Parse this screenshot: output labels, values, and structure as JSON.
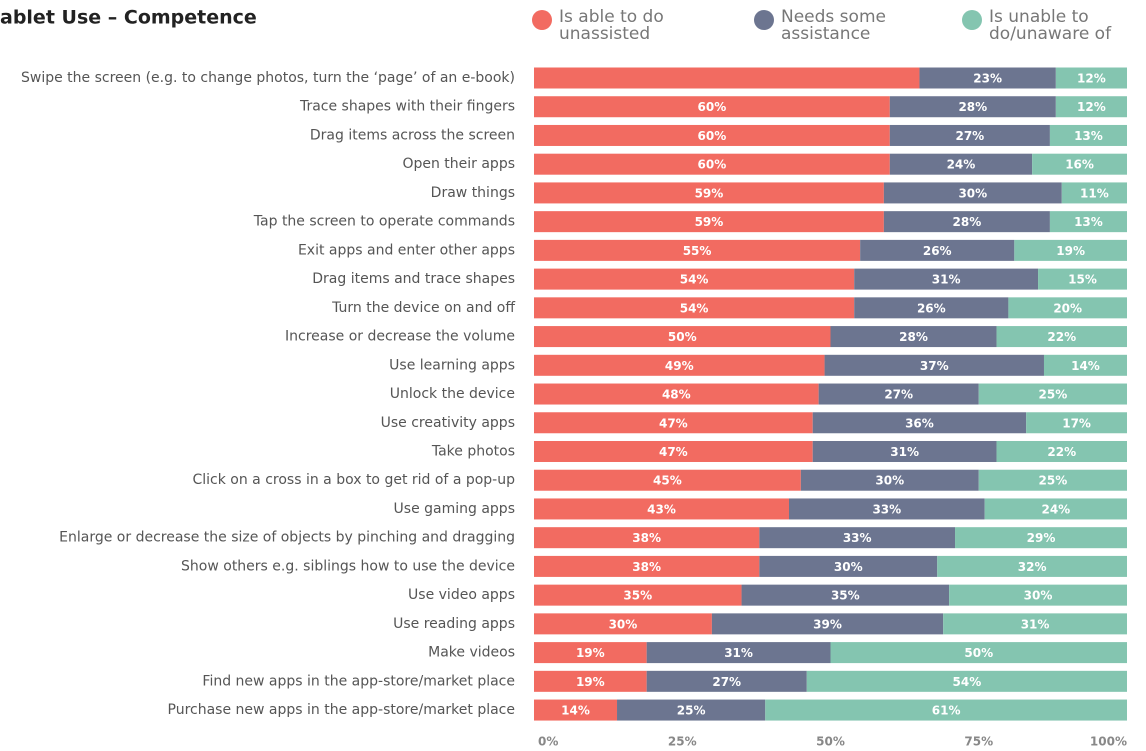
{
  "chart_data": {
    "type": "stacked_barh",
    "title": "ablet Use – Competence",
    "categories": [
      "Swipe the screen (e.g. to change photos, turn the ‘page’ of an e-book)",
      "Trace shapes with their fingers",
      "Drag items across the screen",
      "Open their apps",
      "Draw things",
      "Tap the screen to operate commands",
      "Exit apps and enter other apps",
      "Drag items and trace shapes",
      "Turn the device on and off",
      "Increase or decrease the volume",
      "Use learning apps",
      "Unlock the device",
      "Use creativity apps",
      "Take photos",
      "Click on a cross in a box to get rid of a pop-up",
      "Use gaming apps",
      "Enlarge or decrease the size of objects by pinching and dragging",
      "Show others e.g. siblings how to use the device",
      "Use video apps",
      "Use reading apps",
      "Make videos",
      "Find new apps in the app-store/market place",
      "Purchase new apps in the app-store/market place"
    ],
    "series": [
      {
        "name": "Is able to do\nunassisted",
        "color": "#f26b61",
        "values": [
          65,
          60,
          60,
          60,
          59,
          59,
          55,
          54,
          54,
          50,
          49,
          48,
          47,
          47,
          45,
          43,
          38,
          38,
          35,
          30,
          19,
          19,
          14
        ],
        "value_labels": [
          null,
          "60%",
          "60%",
          "60%",
          "59%",
          "59%",
          "55%",
          "54%",
          "54%",
          "50%",
          "49%",
          "48%",
          "47%",
          "47%",
          "45%",
          "43%",
          "38%",
          "38%",
          "35%",
          "30%",
          "19%",
          "19%",
          "14%"
        ]
      },
      {
        "name": "Needs some\nassistance",
        "color": "#6c7590",
        "values": [
          23,
          28,
          27,
          24,
          30,
          28,
          26,
          31,
          26,
          28,
          37,
          27,
          36,
          31,
          30,
          33,
          33,
          30,
          35,
          39,
          31,
          27,
          25
        ],
        "value_labels": [
          "23%",
          "28%",
          "27%",
          "24%",
          "30%",
          "28%",
          "26%",
          "31%",
          "26%",
          "28%",
          "37%",
          "27%",
          "36%",
          "31%",
          "30%",
          "33%",
          "33%",
          "30%",
          "35%",
          "39%",
          "31%",
          "27%",
          "25%"
        ]
      },
      {
        "name": "Is unable to\ndo/unaware of",
        "color": "#84c5b0",
        "values": [
          12,
          12,
          13,
          16,
          11,
          13,
          19,
          15,
          20,
          22,
          14,
          25,
          17,
          22,
          25,
          24,
          29,
          32,
          30,
          31,
          50,
          54,
          61
        ],
        "value_labels": [
          "12%",
          "12%",
          "13%",
          "16%",
          "11%",
          "13%",
          "19%",
          "15%",
          "20%",
          "22%",
          "14%",
          "25%",
          "17%",
          "22%",
          "25%",
          "24%",
          "29%",
          "32%",
          "30%",
          "31%",
          "50%",
          "54%",
          "61%"
        ]
      }
    ],
    "xlim": [
      0,
      100
    ],
    "xticks": [
      {
        "value": 0,
        "label": "0%"
      },
      {
        "value": 25,
        "label": "25%"
      },
      {
        "value": 50,
        "label": "50%"
      },
      {
        "value": 75,
        "label": "75%"
      },
      {
        "value": 100,
        "label": "100%"
      }
    ]
  }
}
